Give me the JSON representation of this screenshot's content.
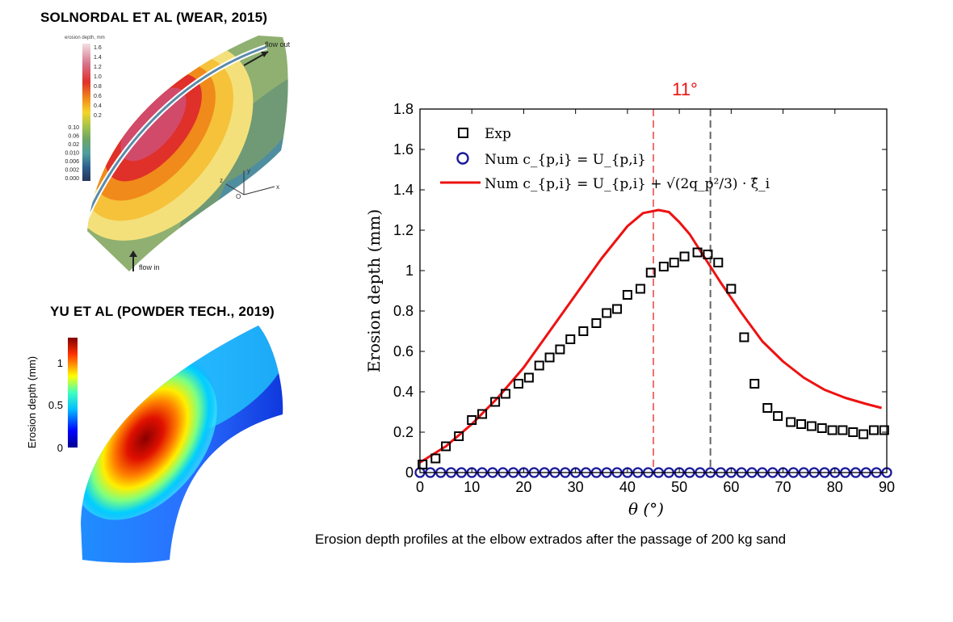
{
  "panel_a": {
    "title": "SOLNORDAL ET AL (WEAR, 2015)",
    "colorbar_label": "erosion depth, mm",
    "colorbar_ticks_upper": [
      "1.6",
      "1.4",
      "1.2",
      "1.0",
      "0.8",
      "0.6",
      "0.4",
      "0.2"
    ],
    "colorbar_ticks_lower": [
      "0.10",
      "0.06",
      "0.02",
      "0.010",
      "0.006",
      "0.002",
      "0.000"
    ],
    "flow_out": "flow out",
    "flow_in": "flow in",
    "axes": [
      "z",
      "y",
      "x",
      "O"
    ]
  },
  "panel_b": {
    "title": "YU ET AL (POWDER TECH., 2019)",
    "colorbar_label": "Erosion depth (mm)",
    "colorbar_ticks": [
      "1",
      "0.5",
      "0"
    ]
  },
  "caption": "Erosion depth profiles at the elbow extrados after the passage of 200 kg sand",
  "annotation": "11°",
  "colors": {
    "exp": "#000000",
    "num": "#1a1a9a",
    "line": "#ee1111",
    "red_vline": "#f07070",
    "gray_vline": "#666666",
    "annot": "#ee1111"
  },
  "chart_data": {
    "type": "line",
    "xlabel": "θ (°)",
    "ylabel": "Erosion depth (mm)",
    "xlim": [
      0,
      90
    ],
    "ylim": [
      0,
      1.8
    ],
    "xticks": [
      "0",
      "10",
      "20",
      "30",
      "40",
      "50",
      "60",
      "70",
      "80",
      "90"
    ],
    "yticks": [
      "0",
      "0.2",
      "0.4",
      "0.6",
      "0.8",
      "1",
      "1.2",
      "1.4",
      "1.6",
      "1.8"
    ],
    "legend": [
      "Exp",
      "Num c_{p,i} = U_{p,i}",
      "Num c_{p,i} = U_{p,i} + √(2q_p²/3) · ξ̂_i"
    ],
    "legend_position": "top-left",
    "vlines": [
      45,
      56
    ],
    "series": [
      {
        "name": "Exp",
        "x": [
          0.5,
          3,
          5,
          7.5,
          10,
          12,
          14.5,
          16.5,
          19,
          21,
          23,
          25,
          27,
          29,
          31.5,
          34,
          36,
          38,
          40,
          42.5,
          44.5,
          47,
          49,
          51,
          53.5,
          55.5,
          57.5,
          60,
          62.5,
          64.5,
          67,
          69,
          71.5,
          73.5,
          75.5,
          77.5,
          79.5,
          81.5,
          83.5,
          85.5,
          87.5,
          89.5
        ],
        "y": [
          0.04,
          0.07,
          0.13,
          0.18,
          0.26,
          0.29,
          0.35,
          0.39,
          0.44,
          0.47,
          0.53,
          0.57,
          0.61,
          0.66,
          0.7,
          0.74,
          0.79,
          0.81,
          0.88,
          0.91,
          0.99,
          1.02,
          1.04,
          1.07,
          1.09,
          1.08,
          1.04,
          0.91,
          0.67,
          0.44,
          0.32,
          0.28,
          0.25,
          0.24,
          0.23,
          0.22,
          0.21,
          0.21,
          0.2,
          0.19,
          0.21,
          0.21
        ]
      },
      {
        "name": "Num c_{p,i} = U_{p,i}",
        "x": [
          0,
          2,
          4,
          6,
          8,
          10,
          12,
          14,
          16,
          18,
          20,
          22,
          24,
          26,
          28,
          30,
          32,
          34,
          36,
          38,
          40,
          42,
          44,
          46,
          48,
          50,
          52,
          54,
          56,
          58,
          60,
          62,
          64,
          66,
          68,
          70,
          72,
          74,
          76,
          78,
          80,
          82,
          84,
          86,
          88,
          90
        ],
        "y": [
          0,
          0,
          0,
          0,
          0,
          0,
          0,
          0,
          0,
          0,
          0,
          0,
          0,
          0,
          0,
          0,
          0,
          0,
          0,
          0,
          0,
          0,
          0,
          0,
          0,
          0,
          0,
          0,
          0,
          0,
          0,
          0,
          0,
          0,
          0,
          0,
          0,
          0,
          0,
          0,
          0,
          0,
          0,
          0,
          0,
          0
        ]
      },
      {
        "name": "Num c_{p,i} = U_{p,i} + √(2q_p²/3) · ξ̂_i",
        "x": [
          0,
          5,
          10,
          15,
          20,
          25,
          30,
          35,
          40,
          43,
          46,
          48,
          50,
          52,
          55,
          58,
          62,
          66,
          70,
          74,
          78,
          82,
          86,
          89
        ],
        "y": [
          0.05,
          0.13,
          0.24,
          0.37,
          0.52,
          0.7,
          0.88,
          1.06,
          1.22,
          1.285,
          1.3,
          1.29,
          1.24,
          1.18,
          1.06,
          0.94,
          0.79,
          0.65,
          0.55,
          0.47,
          0.41,
          0.37,
          0.34,
          0.32
        ]
      }
    ]
  }
}
